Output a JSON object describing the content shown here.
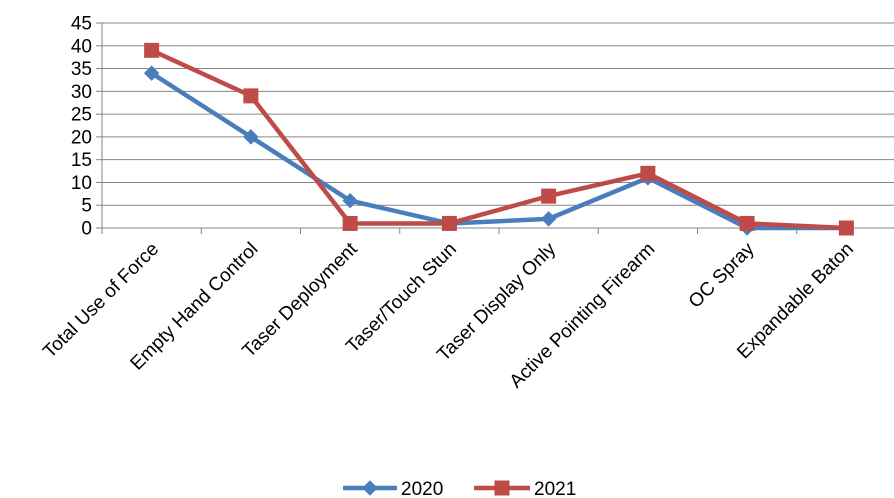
{
  "chart_data": {
    "type": "line",
    "title": "",
    "xlabel": "",
    "ylabel": "",
    "categories": [
      "Total Use of Force",
      "Empty Hand Control",
      "Taser Deployment",
      "Taser/Touch Stun",
      "Taser Display Only",
      "Active Pointing Firearm",
      "OC Spray",
      "Expandable Baton"
    ],
    "series": [
      {
        "name": "2020",
        "color": "#4a7ebb",
        "marker": "diamond",
        "values": [
          34,
          20,
          6,
          1,
          2,
          11,
          0,
          0
        ]
      },
      {
        "name": "2021",
        "color": "#be4b48",
        "marker": "square",
        "values": [
          39,
          29,
          1,
          1,
          7,
          12,
          1,
          0
        ]
      }
    ],
    "ylim": [
      0,
      45
    ],
    "yticks": [
      "0",
      "5",
      "10",
      "15",
      "20",
      "25",
      "30",
      "35",
      "40",
      "45"
    ],
    "grid": true,
    "legend_position": "bottom"
  }
}
